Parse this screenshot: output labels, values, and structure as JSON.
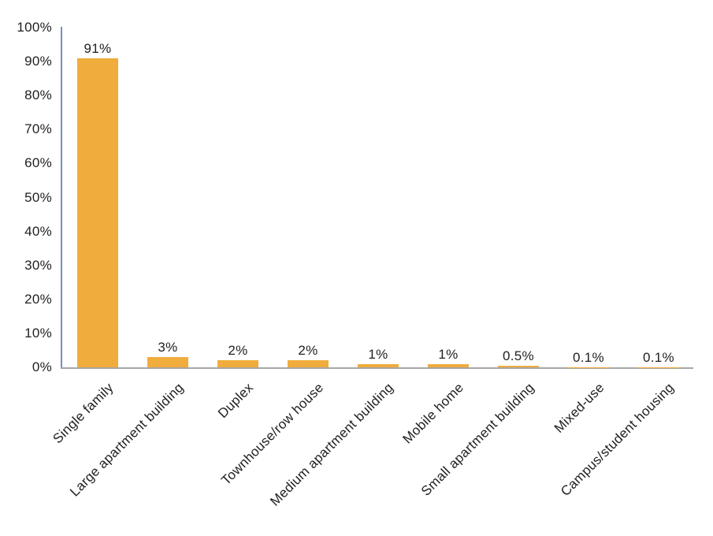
{
  "chart_data": {
    "type": "bar",
    "categories": [
      "Single family",
      "Large apartment building",
      "Duplex",
      "Townhouse/row house",
      "Medium apartment building",
      "Mobile home",
      "Small apartment building",
      "Mixed-use",
      "Campus/student housing"
    ],
    "values": [
      91,
      3,
      2,
      2,
      1,
      1,
      0.5,
      0.1,
      0.1
    ],
    "value_labels": [
      "91%",
      "3%",
      "2%",
      "2%",
      "1%",
      "1%",
      "0.5%",
      "0.1%",
      "0.1%"
    ],
    "y_ticks": [
      "100%",
      "90%",
      "80%",
      "70%",
      "60%",
      "50%",
      "40%",
      "30%",
      "20%",
      "10%",
      "0%"
    ],
    "y_tick_values": [
      100,
      90,
      80,
      70,
      60,
      50,
      40,
      30,
      20,
      10,
      0
    ],
    "xlabel": "",
    "ylabel": "",
    "ylim": [
      0,
      100
    ],
    "grid": false,
    "legend": "none",
    "x_label_rotation_deg": -45,
    "colors": {
      "bar": "#F0AC3C",
      "y_axis_line": "#7090BA",
      "x_axis_line": "#A6A6A6",
      "text": "#232021",
      "background": "#FFFFFF"
    }
  }
}
